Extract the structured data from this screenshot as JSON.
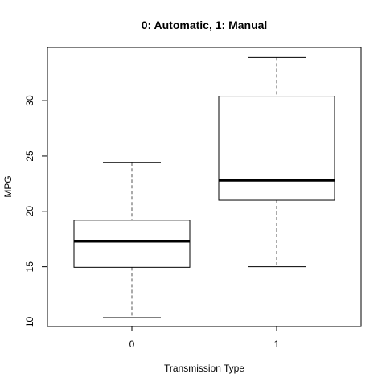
{
  "chart_data": {
    "type": "boxplot",
    "title": "0: Automatic, 1: Manual",
    "xlabel": "Transmission Type",
    "ylabel": "MPG",
    "categories": [
      "0",
      "1"
    ],
    "ylim": [
      9.6,
      34.8
    ],
    "y_ticks": [
      10,
      15,
      20,
      25,
      30
    ],
    "grid": false,
    "boxes": [
      {
        "category": "0",
        "min": 10.4,
        "q1": 14.95,
        "median": 17.3,
        "q3": 19.2,
        "max": 24.4
      },
      {
        "category": "1",
        "min": 15.0,
        "q1": 21.0,
        "median": 22.8,
        "q3": 30.4,
        "max": 33.9
      }
    ],
    "colors": {
      "box_stroke": "#000000",
      "background": "#ffffff",
      "whisker": "#555555"
    }
  }
}
